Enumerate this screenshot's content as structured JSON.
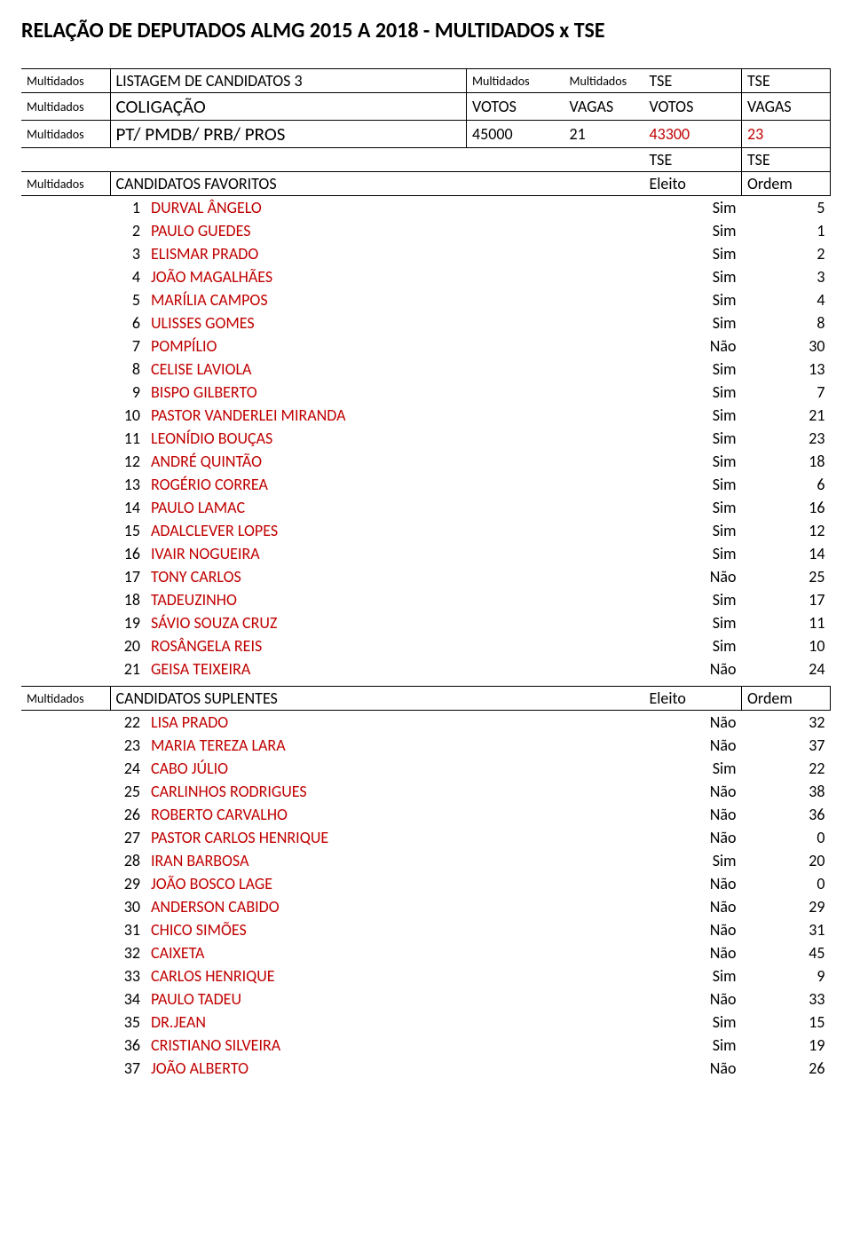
{
  "page_title": "RELAÇÃO DE DEPUTADOS ALMG 2015 A 2018 - MULTIDADOS x TSE",
  "label_multidados": "Multidados",
  "label_tse": "TSE",
  "header_listagem": "LISTAGEM DE CANDIDATOS 3",
  "header_coligacao": "COLIGAÇÃO",
  "header_votos": "VOTOS",
  "header_vagas": "VAGAS",
  "coligacao_name": "PT/ PMDB/ PRB/ PROS",
  "coligacao_votos_m": "45000",
  "coligacao_vagas_m": "21",
  "coligacao_votos_t": "43300",
  "coligacao_vagas_t": "23",
  "header_favoritos": "CANDIDATOS FAVORITOS",
  "header_eleito": "Eleito",
  "header_ordem": "Ordem",
  "header_suplentes": "CANDIDATOS SUPLENTES",
  "colors": {
    "accent": "#c00000",
    "text": "#000000",
    "border": "#000000",
    "background": "#ffffff"
  },
  "favoritos": [
    {
      "n": "1",
      "name": "DURVAL ÂNGELO",
      "eleito": "Sim",
      "ordem": "5"
    },
    {
      "n": "2",
      "name": "PAULO GUEDES",
      "eleito": "Sim",
      "ordem": "1"
    },
    {
      "n": "3",
      "name": "ELISMAR PRADO",
      "eleito": "Sim",
      "ordem": "2"
    },
    {
      "n": "4",
      "name": "JOÃO MAGALHÃES",
      "eleito": "Sim",
      "ordem": "3"
    },
    {
      "n": "5",
      "name": "MARÍLIA CAMPOS",
      "eleito": "Sim",
      "ordem": "4"
    },
    {
      "n": "6",
      "name": "ULISSES GOMES",
      "eleito": "Sim",
      "ordem": "8"
    },
    {
      "n": "7",
      "name": "POMPÍLIO",
      "eleito": "Não",
      "ordem": "30"
    },
    {
      "n": "8",
      "name": "CELISE LAVIOLA",
      "eleito": "Sim",
      "ordem": "13"
    },
    {
      "n": "9",
      "name": "BISPO GILBERTO",
      "eleito": "Sim",
      "ordem": "7"
    },
    {
      "n": "10",
      "name": "PASTOR VANDERLEI MIRANDA",
      "eleito": "Sim",
      "ordem": "21"
    },
    {
      "n": "11",
      "name": "LEONÍDIO BOUÇAS",
      "eleito": "Sim",
      "ordem": "23"
    },
    {
      "n": "12",
      "name": "ANDRÉ QUINTÃO",
      "eleito": "Sim",
      "ordem": "18"
    },
    {
      "n": "13",
      "name": "ROGÉRIO CORREA",
      "eleito": "Sim",
      "ordem": "6"
    },
    {
      "n": "14",
      "name": "PAULO LAMAC",
      "eleito": "Sim",
      "ordem": "16"
    },
    {
      "n": "15",
      "name": "ADALCLEVER LOPES",
      "eleito": "Sim",
      "ordem": "12"
    },
    {
      "n": "16",
      "name": "IVAIR NOGUEIRA",
      "eleito": "Sim",
      "ordem": "14"
    },
    {
      "n": "17",
      "name": "TONY CARLOS",
      "eleito": "Não",
      "ordem": "25"
    },
    {
      "n": "18",
      "name": "TADEUZINHO",
      "eleito": "Sim",
      "ordem": "17"
    },
    {
      "n": "19",
      "name": "SÁVIO SOUZA CRUZ",
      "eleito": "Sim",
      "ordem": "11"
    },
    {
      "n": "20",
      "name": "ROSÂNGELA REIS",
      "eleito": "Sim",
      "ordem": "10"
    },
    {
      "n": "21",
      "name": "GEISA TEIXEIRA",
      "eleito": "Não",
      "ordem": "24"
    }
  ],
  "suplentes": [
    {
      "n": "22",
      "name": "LISA PRADO",
      "eleito": "Não",
      "ordem": "32"
    },
    {
      "n": "23",
      "name": "MARIA TEREZA LARA",
      "eleito": "Não",
      "ordem": "37"
    },
    {
      "n": "24",
      "name": "CABO JÚLIO",
      "eleito": "Sim",
      "ordem": "22"
    },
    {
      "n": "25",
      "name": "CARLINHOS RODRIGUES",
      "eleito": "Não",
      "ordem": "38"
    },
    {
      "n": "26",
      "name": "ROBERTO CARVALHO",
      "eleito": "Não",
      "ordem": "36"
    },
    {
      "n": "27",
      "name": "PASTOR CARLOS HENRIQUE",
      "eleito": "Não",
      "ordem": "0"
    },
    {
      "n": "28",
      "name": "IRAN BARBOSA",
      "eleito": "Sim",
      "ordem": "20"
    },
    {
      "n": "29",
      "name": "JOÃO BOSCO LAGE",
      "eleito": "Não",
      "ordem": "0"
    },
    {
      "n": "30",
      "name": "ANDERSON CABIDO",
      "eleito": "Não",
      "ordem": "29"
    },
    {
      "n": "31",
      "name": "CHICO SIMÕES",
      "eleito": "Não",
      "ordem": "31"
    },
    {
      "n": "32",
      "name": "CAIXETA",
      "eleito": "Não",
      "ordem": "45"
    },
    {
      "n": "33",
      "name": "CARLOS HENRIQUE",
      "eleito": "Sim",
      "ordem": "9"
    },
    {
      "n": "34",
      "name": "PAULO TADEU",
      "eleito": "Não",
      "ordem": "33"
    },
    {
      "n": "35",
      "name": "DR.JEAN",
      "eleito": "Sim",
      "ordem": "15"
    },
    {
      "n": "36",
      "name": "CRISTIANO SILVEIRA",
      "eleito": "Sim",
      "ordem": "19"
    },
    {
      "n": "37",
      "name": "JOÃO ALBERTO",
      "eleito": "Não",
      "ordem": "26"
    }
  ]
}
